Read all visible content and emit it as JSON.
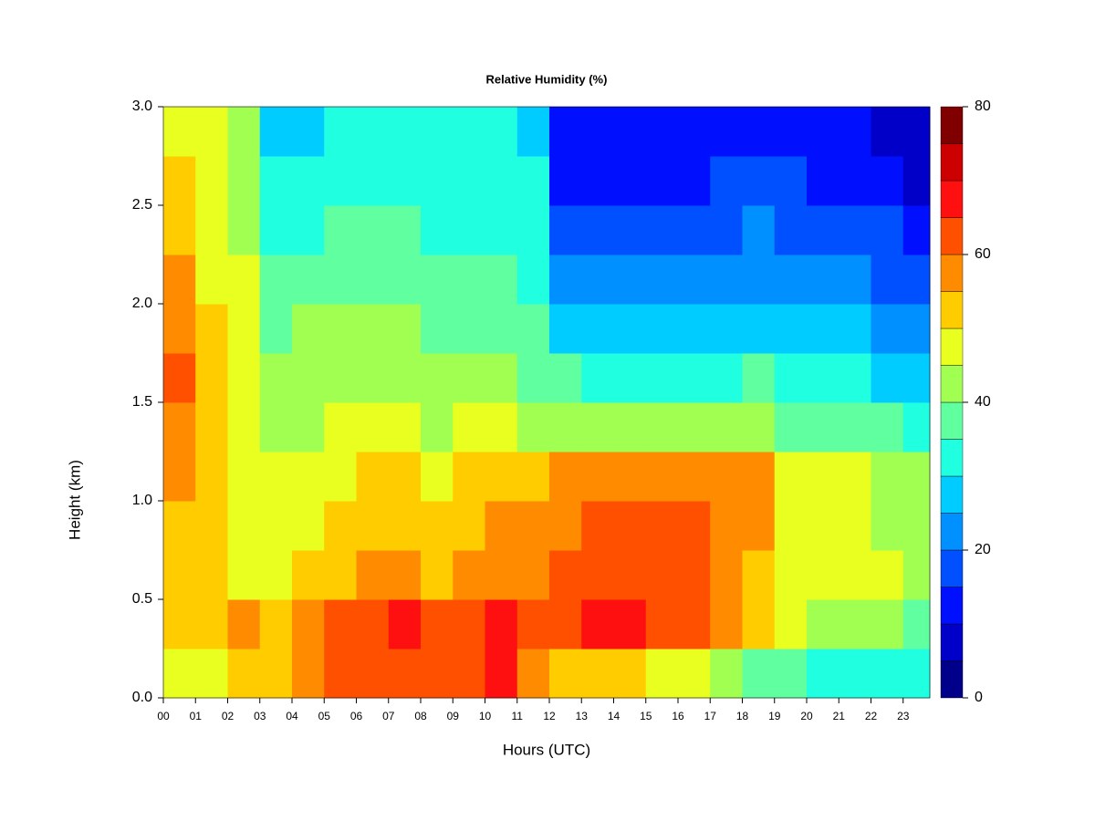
{
  "chart_data": {
    "type": "heatmap",
    "title": "Relative Humidity (%)",
    "xlabel": "Hours (UTC)",
    "ylabel": "Height (km)",
    "x": [
      0,
      1,
      2,
      3,
      4,
      5,
      6,
      7,
      8,
      9,
      10,
      11,
      12,
      13,
      14,
      15,
      16,
      17,
      18,
      19,
      20,
      21,
      22,
      23
    ],
    "y": [
      0,
      0.25,
      0.5,
      0.75,
      1.0,
      1.25,
      1.5,
      1.75,
      2.0,
      2.25,
      2.5,
      2.75
    ],
    "z": [
      [
        45,
        48,
        50,
        50,
        55,
        60,
        62,
        63,
        60,
        60,
        65,
        55,
        52,
        52,
        50,
        48,
        45,
        42,
        38,
        35,
        33,
        32,
        30,
        32
      ],
      [
        50,
        52,
        55,
        52,
        58,
        60,
        63,
        65,
        62,
        62,
        66,
        62,
        63,
        66,
        65,
        62,
        60,
        55,
        50,
        45,
        42,
        40,
        40,
        38
      ],
      [
        52,
        50,
        48,
        47,
        50,
        52,
        55,
        55,
        53,
        55,
        58,
        57,
        60,
        63,
        62,
        60,
        60,
        57,
        52,
        48,
        45,
        45,
        45,
        42
      ],
      [
        52,
        50,
        48,
        46,
        48,
        50,
        52,
        53,
        50,
        52,
        55,
        55,
        57,
        60,
        60,
        60,
        60,
        58,
        55,
        48,
        45,
        45,
        43,
        40
      ],
      [
        55,
        50,
        48,
        45,
        47,
        48,
        50,
        50,
        48,
        50,
        52,
        52,
        55,
        57,
        57,
        57,
        58,
        57,
        55,
        47,
        45,
        45,
        42,
        40
      ],
      [
        55,
        50,
        45,
        42,
        43,
        45,
        45,
        45,
        43,
        45,
        45,
        42,
        40,
        40,
        40,
        40,
        40,
        40,
        42,
        38,
        37,
        37,
        35,
        33
      ],
      [
        60,
        52,
        45,
        40,
        42,
        43,
        43,
        43,
        40,
        42,
        40,
        38,
        35,
        33,
        32,
        32,
        33,
        33,
        35,
        32,
        30,
        30,
        28,
        25
      ],
      [
        58,
        50,
        45,
        37,
        40,
        40,
        40,
        40,
        37,
        38,
        37,
        35,
        25,
        25,
        25,
        25,
        25,
        25,
        27,
        25,
        25,
        25,
        22,
        20
      ],
      [
        55,
        48,
        45,
        35,
        37,
        37,
        38,
        37,
        35,
        35,
        35,
        32,
        20,
        20,
        20,
        20,
        20,
        22,
        22,
        22,
        20,
        20,
        18,
        15
      ],
      [
        53,
        47,
        43,
        32,
        33,
        35,
        35,
        35,
        33,
        33,
        33,
        30,
        15,
        15,
        15,
        17,
        18,
        18,
        20,
        18,
        17,
        17,
        15,
        12
      ],
      [
        50,
        45,
        42,
        30,
        30,
        32,
        32,
        32,
        32,
        32,
        32,
        30,
        12,
        12,
        12,
        12,
        13,
        15,
        15,
        15,
        13,
        13,
        12,
        8
      ],
      [
        48,
        45,
        42,
        28,
        28,
        30,
        30,
        30,
        30,
        30,
        30,
        28,
        12,
        12,
        12,
        12,
        12,
        12,
        13,
        13,
        12,
        12,
        8,
        5
      ]
    ],
    "xlim": [
      0,
      23.83
    ],
    "ylim": [
      0,
      3.0
    ],
    "xticks": [
      {
        "value": 0,
        "label": "00"
      },
      {
        "value": 1,
        "label": "01"
      },
      {
        "value": 2,
        "label": "02"
      },
      {
        "value": 3,
        "label": "03"
      },
      {
        "value": 4,
        "label": "04"
      },
      {
        "value": 5,
        "label": "05"
      },
      {
        "value": 6,
        "label": "06"
      },
      {
        "value": 7,
        "label": "07"
      },
      {
        "value": 8,
        "label": "08"
      },
      {
        "value": 9,
        "label": "09"
      },
      10,
      11,
      12,
      13,
      14,
      15,
      16,
      17,
      18,
      19,
      20,
      21,
      22,
      23
    ],
    "yticks": [
      {
        "value": 0,
        "label": "0.0"
      },
      0.5,
      {
        "value": 1,
        "label": "1.0"
      },
      1.5,
      {
        "value": 2,
        "label": "2.0"
      },
      2.5,
      {
        "value": 3,
        "label": "3.0"
      }
    ],
    "levels": [
      0,
      5,
      10,
      15,
      20,
      25,
      30,
      35,
      40,
      45,
      50,
      55,
      60,
      65,
      70,
      75,
      80
    ],
    "colors": [
      "#00008b",
      "#0000c8",
      "#0010ff",
      "#0050ff",
      "#0090ff",
      "#00ccff",
      "#20ffe0",
      "#60ffa0",
      "#a0ff50",
      "#e8ff20",
      "#ffcc00",
      "#ff8c00",
      "#ff5000",
      "#ff1010",
      "#cc0000",
      "#800000"
    ],
    "clim": [
      0,
      80
    ],
    "cticks": [
      0,
      20,
      40,
      60,
      80
    ]
  }
}
